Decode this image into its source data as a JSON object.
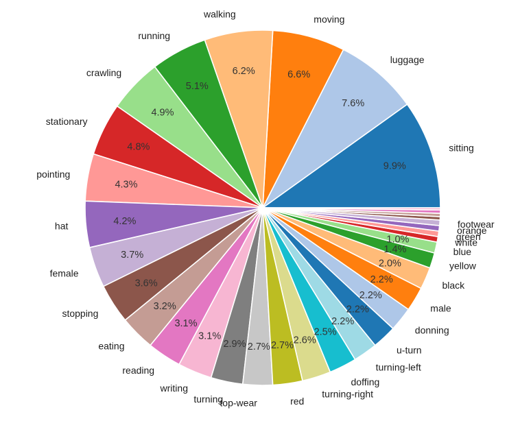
{
  "figure": {
    "background_color": "#ffffff",
    "title": ""
  },
  "chart_data": {
    "type": "pie",
    "title": "",
    "xlabel": "",
    "ylabel": "",
    "legend": "none",
    "start_angle_deg": 0,
    "direction": "counterclockwise",
    "units": "percent",
    "label_placement": "outside",
    "pct_label_placement": "inside",
    "slice_border_color": "#ffffff",
    "slices": [
      {
        "label": "sitting",
        "value": 9.9,
        "pct": "9.9%",
        "color": "#1f77b4"
      },
      {
        "label": "luggage",
        "value": 7.6,
        "pct": "7.6%",
        "color": "#aec7e8"
      },
      {
        "label": "moving",
        "value": 6.6,
        "pct": "6.6%",
        "color": "#ff7f0e"
      },
      {
        "label": "walking",
        "value": 6.2,
        "pct": "6.2%",
        "color": "#ffbb78"
      },
      {
        "label": "running",
        "value": 5.1,
        "pct": "5.1%",
        "color": "#2ca02c"
      },
      {
        "label": "crawling",
        "value": 4.9,
        "pct": "4.9%",
        "color": "#98df8a"
      },
      {
        "label": "stationary",
        "value": 4.8,
        "pct": "4.8%",
        "color": "#d62728"
      },
      {
        "label": "pointing",
        "value": 4.3,
        "pct": "4.3%",
        "color": "#ff9896"
      },
      {
        "label": "hat",
        "value": 4.2,
        "pct": "4.2%",
        "color": "#9467bd"
      },
      {
        "label": "female",
        "value": 3.7,
        "pct": "3.7%",
        "color": "#c5b0d5"
      },
      {
        "label": "stopping",
        "value": 3.6,
        "pct": "3.6%",
        "color": "#8c564b"
      },
      {
        "label": "eating",
        "value": 3.2,
        "pct": "3.2%",
        "color": "#c49c94"
      },
      {
        "label": "reading",
        "value": 3.1,
        "pct": "3.1%",
        "color": "#e377c2"
      },
      {
        "label": "writing",
        "value": 3.1,
        "pct": "3.1%",
        "color": "#f7b6d2"
      },
      {
        "label": "turning",
        "value": 2.9,
        "pct": "2.9%",
        "color": "#7f7f7f"
      },
      {
        "label": "top-wear",
        "value": 2.7,
        "pct": "2.7%",
        "color": "#c7c7c7"
      },
      {
        "label": "red",
        "value": 2.7,
        "pct": "2.7%",
        "color": "#bcbd22"
      },
      {
        "label": "turning-right",
        "value": 2.6,
        "pct": "2.6%",
        "color": "#dbdb8d"
      },
      {
        "label": "doffing",
        "value": 2.5,
        "pct": "2.5%",
        "color": "#17becf"
      },
      {
        "label": "turning-left",
        "value": 2.2,
        "pct": "2.2%",
        "color": "#9edae5"
      },
      {
        "label": "u-turn",
        "value": 2.2,
        "pct": "2.2%",
        "color": "#1f77b4"
      },
      {
        "label": "donning",
        "value": 2.2,
        "pct": "2.2%",
        "color": "#aec7e8"
      },
      {
        "label": "male",
        "value": 2.2,
        "pct": "2.2%",
        "color": "#ff7f0e"
      },
      {
        "label": "black",
        "value": 2.0,
        "pct": "2.0%",
        "color": "#ffbb78"
      },
      {
        "label": "yellow",
        "value": 1.4,
        "pct": "1.4%",
        "color": "#2ca02c"
      },
      {
        "label": "blue",
        "value": 1.0,
        "pct": "1.0%",
        "color": "#98df8a"
      },
      {
        "label": "white",
        "value": 0.5,
        "pct": "",
        "color": "#d62728"
      },
      {
        "label": "green",
        "value": 0.5,
        "pct": "",
        "color": "#ff9896"
      },
      {
        "label": "orange",
        "value": 0.5,
        "pct": "",
        "color": "#9467bd"
      },
      {
        "label": "footwear",
        "value": 0.5,
        "pct": "",
        "color": "#c5b0d5"
      },
      {
        "label": "",
        "value": 0.3,
        "pct": "",
        "color": "#8c564b"
      },
      {
        "label": "",
        "value": 0.3,
        "pct": "",
        "color": "#c49c94"
      },
      {
        "label": "",
        "value": 0.3,
        "pct": "",
        "color": "#e377c2"
      },
      {
        "label": "",
        "value": 0.2,
        "pct": "",
        "color": "#f7b6d2"
      }
    ]
  }
}
